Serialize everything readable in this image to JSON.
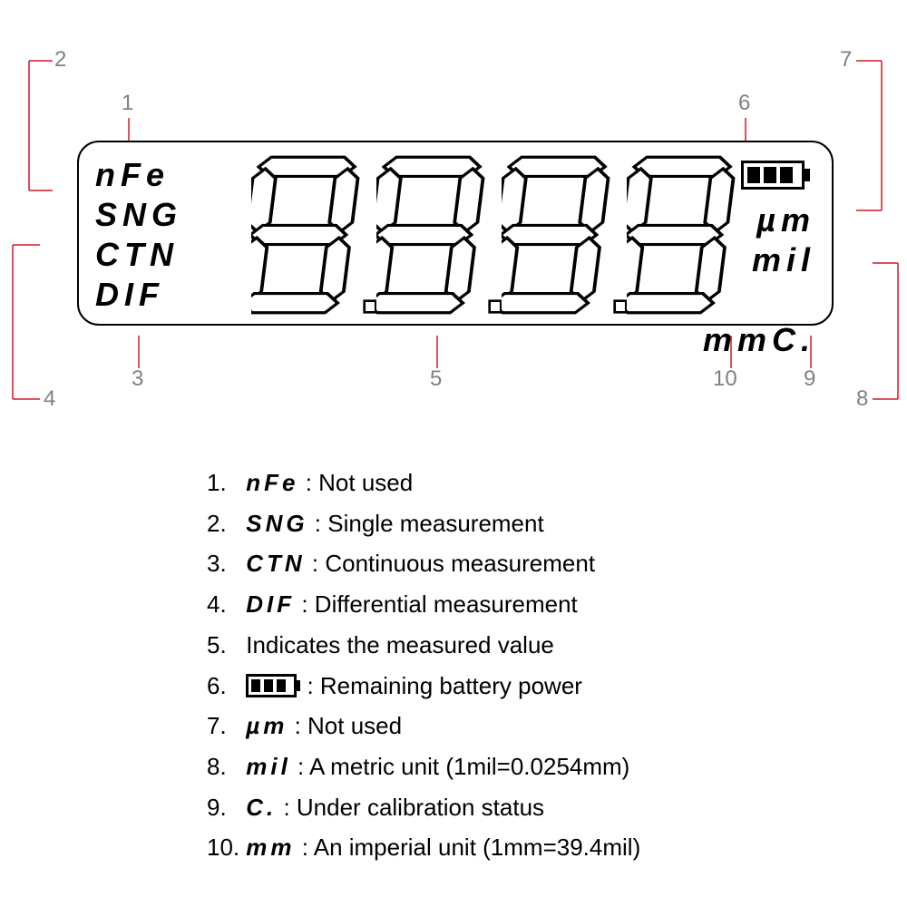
{
  "callouts": {
    "n1": "1",
    "n2": "2",
    "n3": "3",
    "n4": "4",
    "n5": "5",
    "n6": "6",
    "n7": "7",
    "n8": "8",
    "n9": "9",
    "n10": "10"
  },
  "lcd": {
    "left": {
      "l1": "nFe",
      "l2": "SNG",
      "l3": "CTN",
      "l4": "DIF"
    },
    "right": {
      "r1": "µm",
      "r2": "mil",
      "r3_mm": "mm",
      "r3_c": "C."
    }
  },
  "legend": {
    "items": [
      {
        "num": "1.",
        "sym": "nFe",
        "desc": ": Not used",
        "type": "text"
      },
      {
        "num": "2.",
        "sym": "SNG",
        "desc": ": Single measurement",
        "type": "text"
      },
      {
        "num": "3.",
        "sym": "CTN",
        "desc": ": Continuous measurement",
        "type": "text"
      },
      {
        "num": "4.",
        "sym": "DIF",
        "desc": ": Differential measurement",
        "type": "text"
      },
      {
        "num": "5.",
        "sym": "",
        "desc": "Indicates the measured value",
        "type": "plain"
      },
      {
        "num": "6.",
        "sym": "",
        "desc": ": Remaining battery power",
        "type": "battery"
      },
      {
        "num": "7.",
        "sym": "µm",
        "desc": ": Not used",
        "type": "text"
      },
      {
        "num": "8.",
        "sym": "mil",
        "desc": ": A metric unit (1mil=0.0254mm)",
        "type": "text"
      },
      {
        "num": "9.",
        "sym": " C.",
        "desc": ": Under calibration status",
        "type": "text"
      },
      {
        "num": "10.",
        "sym": "mm",
        "desc": ": An imperial unit (1mm=39.4mil)",
        "type": "text"
      }
    ]
  },
  "style": {
    "line_color": "#d01c24",
    "line_width": 1.5,
    "callout_color": "#808080",
    "seg_fill": "#ffffff",
    "seg_stroke": "#000000",
    "seg_stroke_w": 3
  }
}
